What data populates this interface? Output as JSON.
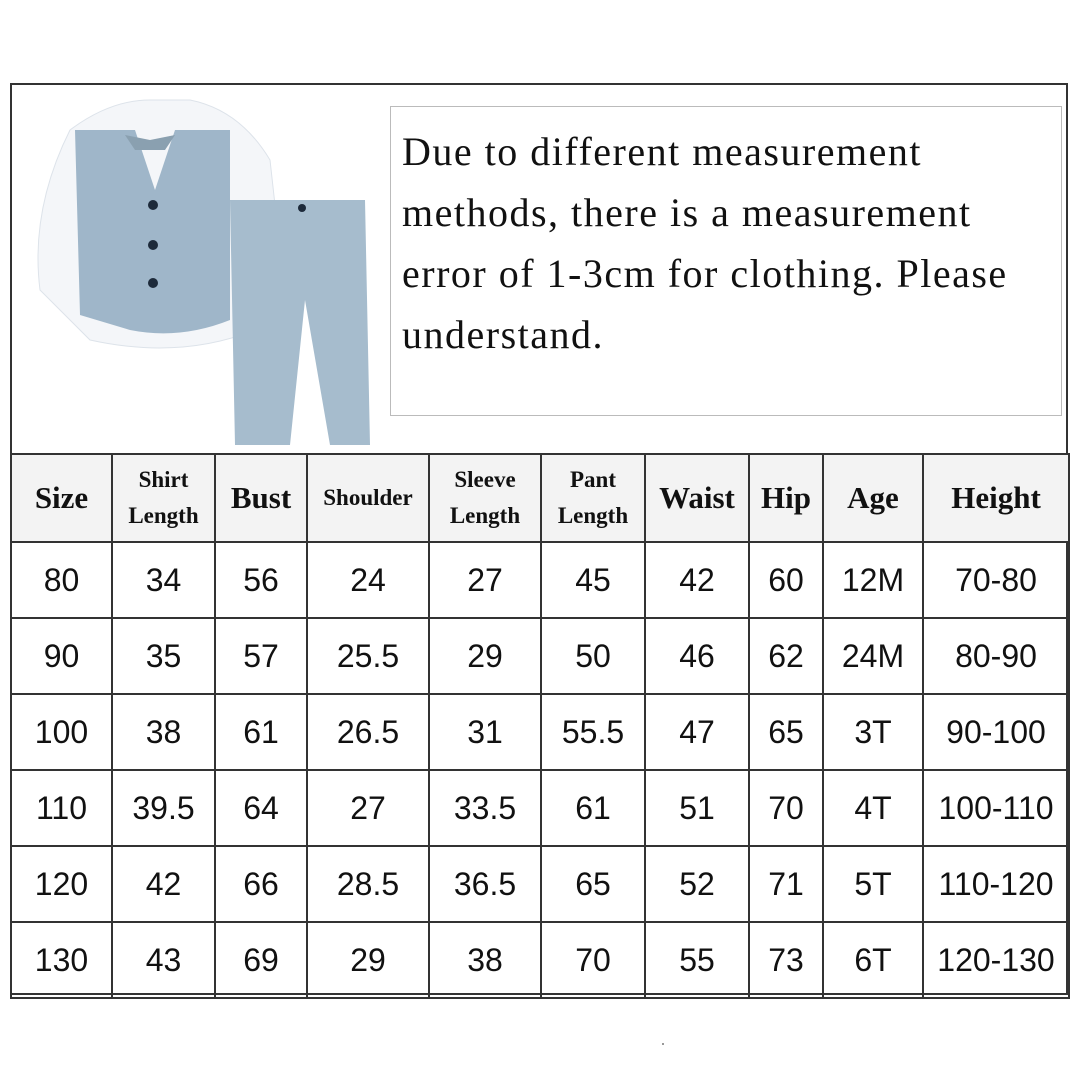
{
  "notice": "Due to different measurement methods, there is a measurement error of 1-3cm for clothing. Please understand.",
  "colors": {
    "outfit_blue": "#9fb6c9",
    "header_bg": "#f3f3f3",
    "border": "#333333"
  },
  "headers": [
    {
      "l1": "Size",
      "l2": ""
    },
    {
      "l1": "Shirt",
      "l2": "Length"
    },
    {
      "l1": "Bust",
      "l2": ""
    },
    {
      "l1": "Shoulder",
      "l2": ""
    },
    {
      "l1": "Sleeve",
      "l2": "Length"
    },
    {
      "l1": "Pant",
      "l2": "Length"
    },
    {
      "l1": "Waist",
      "l2": ""
    },
    {
      "l1": "Hip",
      "l2": ""
    },
    {
      "l1": "Age",
      "l2": ""
    },
    {
      "l1": "Height",
      "l2": ""
    }
  ],
  "rows": [
    [
      "80",
      "34",
      "56",
      "24",
      "27",
      "45",
      "42",
      "60",
      "12M",
      "70-80"
    ],
    [
      "90",
      "35",
      "57",
      "25.5",
      "29",
      "50",
      "46",
      "62",
      "24M",
      "80-90"
    ],
    [
      "100",
      "38",
      "61",
      "26.5",
      "31",
      "55.5",
      "47",
      "65",
      "3T",
      "90-100"
    ],
    [
      "110",
      "39.5",
      "64",
      "27",
      "33.5",
      "61",
      "51",
      "70",
      "4T",
      "100-110"
    ],
    [
      "120",
      "42",
      "66",
      "28.5",
      "36.5",
      "65",
      "52",
      "71",
      "5T",
      "110-120"
    ],
    [
      "130",
      "43",
      "69",
      "29",
      "38",
      "70",
      "55",
      "73",
      "6T",
      "120-130"
    ]
  ]
}
